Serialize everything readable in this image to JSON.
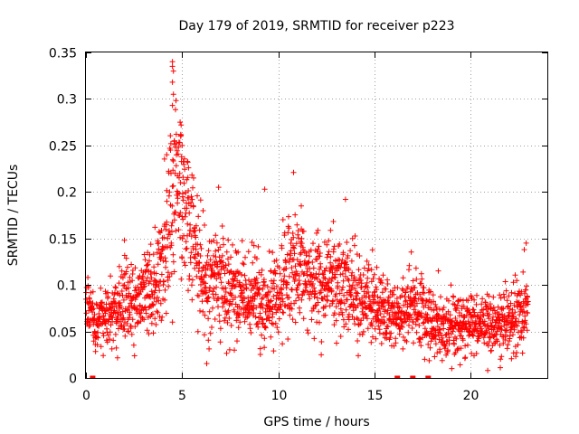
{
  "chart_data": {
    "type": "scatter",
    "title": "Day 179 of 2019, SRMTID for receiver p223",
    "xlabel": "GPS time / hours",
    "ylabel": "SRMTID / TECUs",
    "xlim": [
      0,
      24
    ],
    "ylim": [
      0,
      0.35
    ],
    "xticks": [
      0,
      5,
      10,
      15,
      20
    ],
    "xtick_labels": [
      "0",
      "5",
      "10",
      "15",
      "20"
    ],
    "yticks": [
      0,
      0.05,
      0.1,
      0.15,
      0.2,
      0.25,
      0.3,
      0.35
    ],
    "ytick_labels": [
      "0",
      "0.05",
      "0.1",
      "0.15",
      "0.2",
      "0.25",
      "0.3",
      "0.35"
    ],
    "grid": true,
    "marker": "+",
    "color": "#ff0000",
    "zero_markers_x": [
      0.35,
      16.2,
      17.0,
      17.8
    ],
    "profile": [
      [
        0.0,
        0.085,
        0.015
      ],
      [
        0.5,
        0.062,
        0.014
      ],
      [
        1.0,
        0.063,
        0.016
      ],
      [
        1.5,
        0.072,
        0.018
      ],
      [
        2.0,
        0.08,
        0.022
      ],
      [
        2.5,
        0.083,
        0.02
      ],
      [
        3.0,
        0.09,
        0.022
      ],
      [
        3.5,
        0.095,
        0.024
      ],
      [
        4.0,
        0.125,
        0.03
      ],
      [
        4.4,
        0.18,
        0.04
      ],
      [
        4.7,
        0.21,
        0.045
      ],
      [
        5.0,
        0.19,
        0.04
      ],
      [
        5.4,
        0.165,
        0.035
      ],
      [
        5.8,
        0.135,
        0.03
      ],
      [
        6.2,
        0.105,
        0.028
      ],
      [
        6.6,
        0.1,
        0.028
      ],
      [
        7.0,
        0.105,
        0.03
      ],
      [
        7.5,
        0.09,
        0.025
      ],
      [
        8.0,
        0.09,
        0.024
      ],
      [
        8.5,
        0.088,
        0.024
      ],
      [
        9.0,
        0.09,
        0.025
      ],
      [
        9.5,
        0.085,
        0.025
      ],
      [
        10.0,
        0.09,
        0.025
      ],
      [
        10.5,
        0.115,
        0.03
      ],
      [
        11.0,
        0.12,
        0.03
      ],
      [
        11.5,
        0.105,
        0.028
      ],
      [
        12.0,
        0.1,
        0.026
      ],
      [
        12.5,
        0.095,
        0.025
      ],
      [
        13.0,
        0.105,
        0.028
      ],
      [
        13.5,
        0.1,
        0.028
      ],
      [
        14.0,
        0.085,
        0.025
      ],
      [
        14.5,
        0.08,
        0.022
      ],
      [
        15.0,
        0.075,
        0.02
      ],
      [
        15.5,
        0.072,
        0.018
      ],
      [
        16.0,
        0.065,
        0.018
      ],
      [
        16.5,
        0.068,
        0.018
      ],
      [
        17.0,
        0.075,
        0.02
      ],
      [
        17.5,
        0.072,
        0.02
      ],
      [
        18.0,
        0.06,
        0.016
      ],
      [
        18.5,
        0.055,
        0.015
      ],
      [
        19.0,
        0.055,
        0.015
      ],
      [
        19.5,
        0.058,
        0.016
      ],
      [
        20.0,
        0.06,
        0.016
      ],
      [
        20.5,
        0.062,
        0.017
      ],
      [
        21.0,
        0.058,
        0.016
      ],
      [
        21.5,
        0.055,
        0.016
      ],
      [
        22.0,
        0.06,
        0.017
      ],
      [
        22.5,
        0.068,
        0.018
      ],
      [
        23.0,
        0.07,
        0.02
      ]
    ],
    "highlights": [
      {
        "x": 4.5,
        "y": 0.34
      },
      {
        "x": 4.5,
        "y": 0.335
      },
      {
        "x": 4.55,
        "y": 0.33
      },
      {
        "x": 4.5,
        "y": 0.318
      },
      {
        "x": 4.55,
        "y": 0.305
      },
      {
        "x": 4.5,
        "y": 0.293
      },
      {
        "x": 4.9,
        "y": 0.275
      },
      {
        "x": 4.95,
        "y": 0.272
      },
      {
        "x": 4.7,
        "y": 0.262
      },
      {
        "x": 4.6,
        "y": 0.255
      },
      {
        "x": 5.0,
        "y": 0.25
      },
      {
        "x": 4.4,
        "y": 0.245
      },
      {
        "x": 5.3,
        "y": 0.232
      },
      {
        "x": 4.2,
        "y": 0.24
      },
      {
        "x": 5.6,
        "y": 0.215
      },
      {
        "x": 6.9,
        "y": 0.205
      },
      {
        "x": 9.3,
        "y": 0.203
      },
      {
        "x": 10.8,
        "y": 0.221
      },
      {
        "x": 13.5,
        "y": 0.192
      },
      {
        "x": 11.2,
        "y": 0.185
      },
      {
        "x": 22.9,
        "y": 0.145
      },
      {
        "x": 22.8,
        "y": 0.138
      },
      {
        "x": 0.1,
        "y": 0.108
      },
      {
        "x": 2.0,
        "y": 0.148
      },
      {
        "x": 4.5,
        "y": 0.06
      },
      {
        "x": 20.9,
        "y": 0.008
      },
      {
        "x": 0.9,
        "y": 0.024
      }
    ],
    "n_points": 2300
  }
}
